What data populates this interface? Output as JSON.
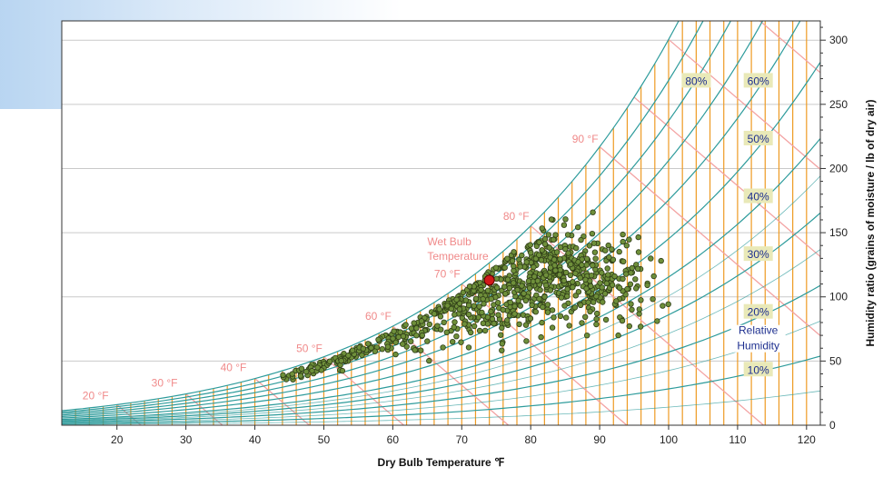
{
  "chart_data": {
    "type": "scatter",
    "title": "",
    "xlabel": "Dry Bulb Temperature ℉",
    "ylabel": "Humidity ratio (grains of moisture / lb of dry air)",
    "xlim": [
      12,
      122
    ],
    "ylim": [
      0,
      315
    ],
    "x_ticks": [
      20,
      30,
      40,
      50,
      60,
      70,
      80,
      90,
      100,
      110,
      120
    ],
    "y_ticks": [
      0,
      50,
      100,
      150,
      200,
      250,
      300
    ],
    "y_axis_side": "right",
    "grid": "horizontal",
    "wet_bulb_title_line1": "Wet Bulb",
    "wet_bulb_title_line2": "Temperature",
    "wet_bulb_lines": [
      {
        "label": "20 °F",
        "t": 20,
        "label_x": 15,
        "label_y": 20
      },
      {
        "label": "30 °F",
        "t": 30,
        "label_x": 25,
        "label_y": 30
      },
      {
        "label": "40 °F",
        "t": 40,
        "label_x": 35,
        "label_y": 42
      },
      {
        "label": "50 °F",
        "t": 50,
        "label_x": 46,
        "label_y": 57
      },
      {
        "label": "60 °F",
        "t": 60,
        "label_x": 56,
        "label_y": 82
      },
      {
        "label": "70 °F",
        "t": 70,
        "label_x": 66,
        "label_y": 115
      },
      {
        "label": "80 °F",
        "t": 80,
        "label_x": 76,
        "label_y": 160
      },
      {
        "label": "90 °F",
        "t": 90,
        "label_x": 86,
        "label_y": 220
      }
    ],
    "rh_title_line1": "Relative",
    "rh_title_line2": "Humidity",
    "rh_labels": [
      {
        "label": "80%",
        "x": 104,
        "y": 268
      },
      {
        "label": "60%",
        "x": 113,
        "y": 268
      },
      {
        "label": "50%",
        "x": 113,
        "y": 223
      },
      {
        "label": "40%",
        "x": 113,
        "y": 178
      },
      {
        "label": "30%",
        "x": 113,
        "y": 133
      },
      {
        "label": "20%",
        "x": 113,
        "y": 88
      },
      {
        "label": "10%",
        "x": 113,
        "y": 43
      }
    ],
    "rh_curves": [
      10,
      20,
      30,
      40,
      50,
      60,
      70,
      80,
      90,
      100
    ],
    "highlight_point": {
      "x": 74,
      "y": 113
    },
    "clusters": [
      {
        "x": 82,
        "y": 115,
        "sx": 6,
        "sy": 17,
        "n": 420
      },
      {
        "x": 70,
        "y": 90,
        "sx": 6,
        "sy": 14,
        "n": 180
      },
      {
        "x": 58,
        "y": 70,
        "sx": 5,
        "sy": 8,
        "n": 90
      },
      {
        "x": 48,
        "y": 52,
        "sx": 4,
        "sy": 5,
        "n": 45
      },
      {
        "x": 90,
        "y": 110,
        "sx": 4,
        "sy": 18,
        "n": 120
      }
    ],
    "colors": {
      "rh_curve": "#2d9b9b",
      "dry_bulb_line": "#ee9a22",
      "wet_bulb_line": "#f3a3a3",
      "grid": "#c9c9c9",
      "point_fill": "#6e8f3a",
      "point_stroke": "#2f3d18",
      "highlight_fill": "#d11a1a",
      "label_box": "#e9e9b8"
    }
  }
}
